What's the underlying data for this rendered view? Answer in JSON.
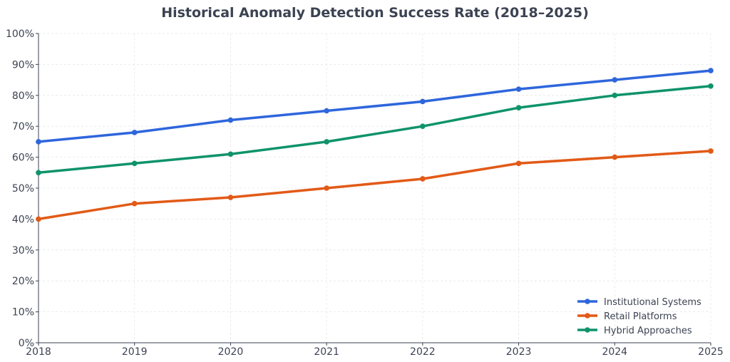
{
  "chart_data": {
    "type": "line",
    "title": "Historical Anomaly Detection Success Rate (2018–2025)",
    "xlabel": "",
    "ylabel": "",
    "x": [
      2018,
      2019,
      2020,
      2021,
      2022,
      2023,
      2024,
      2025
    ],
    "x_tick_labels": [
      "2018",
      "2019",
      "2020",
      "2021",
      "2022",
      "2023",
      "2024",
      "2025"
    ],
    "ylim": [
      0,
      100
    ],
    "y_ticks": [
      0,
      10,
      20,
      30,
      40,
      50,
      60,
      70,
      80,
      90,
      100
    ],
    "y_tick_labels": [
      "0%",
      "10%",
      "20%",
      "30%",
      "40%",
      "50%",
      "60%",
      "70%",
      "80%",
      "90%",
      "100%"
    ],
    "grid": true,
    "legend_position": "bottom-right",
    "series": [
      {
        "name": "Institutional Systems",
        "color": "#2e66dc",
        "values": [
          65,
          68,
          72,
          75,
          78,
          82,
          85,
          88
        ]
      },
      {
        "name": "Retail Platforms",
        "color": "#e25a17",
        "values": [
          40,
          45,
          47,
          50,
          53,
          58,
          60,
          62
        ]
      },
      {
        "name": "Hybrid Approaches",
        "color": "#0f936a",
        "values": [
          55,
          58,
          61,
          65,
          70,
          76,
          80,
          83
        ]
      }
    ]
  }
}
